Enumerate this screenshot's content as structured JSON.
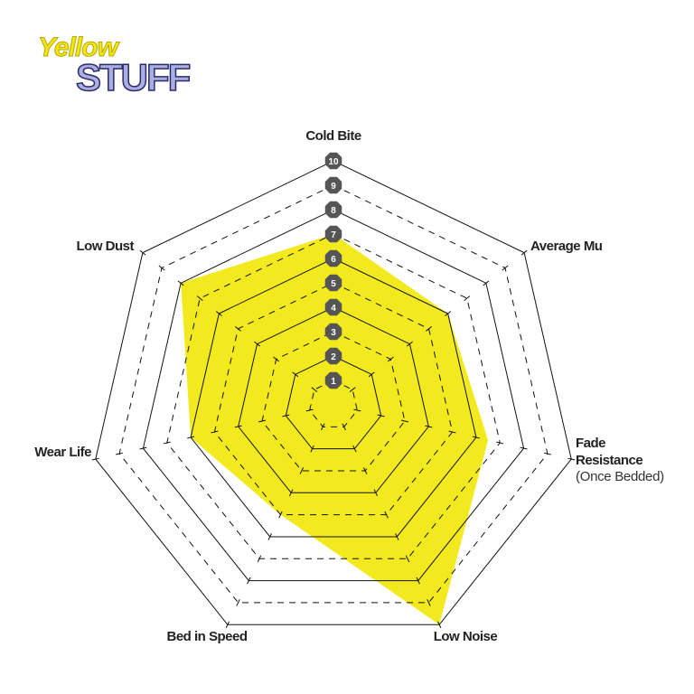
{
  "logo": [
    "Yellow",
    "STUFF"
  ],
  "chart_data": {
    "type": "radar",
    "categories": [
      "Cold Bite",
      "Average Mu",
      "Fade Resistance",
      "Low Noise",
      "Bed in Speed",
      "Wear Life",
      "Low Dust"
    ],
    "category_note": "(Once Bedded)",
    "values": [
      7,
      6,
      6.5,
      10,
      5,
      6,
      8
    ],
    "color": "#f2ea1e",
    "rlim": [
      0,
      10
    ],
    "rticks": [
      1,
      2,
      3,
      4,
      5,
      6,
      7,
      8,
      9,
      10
    ]
  }
}
